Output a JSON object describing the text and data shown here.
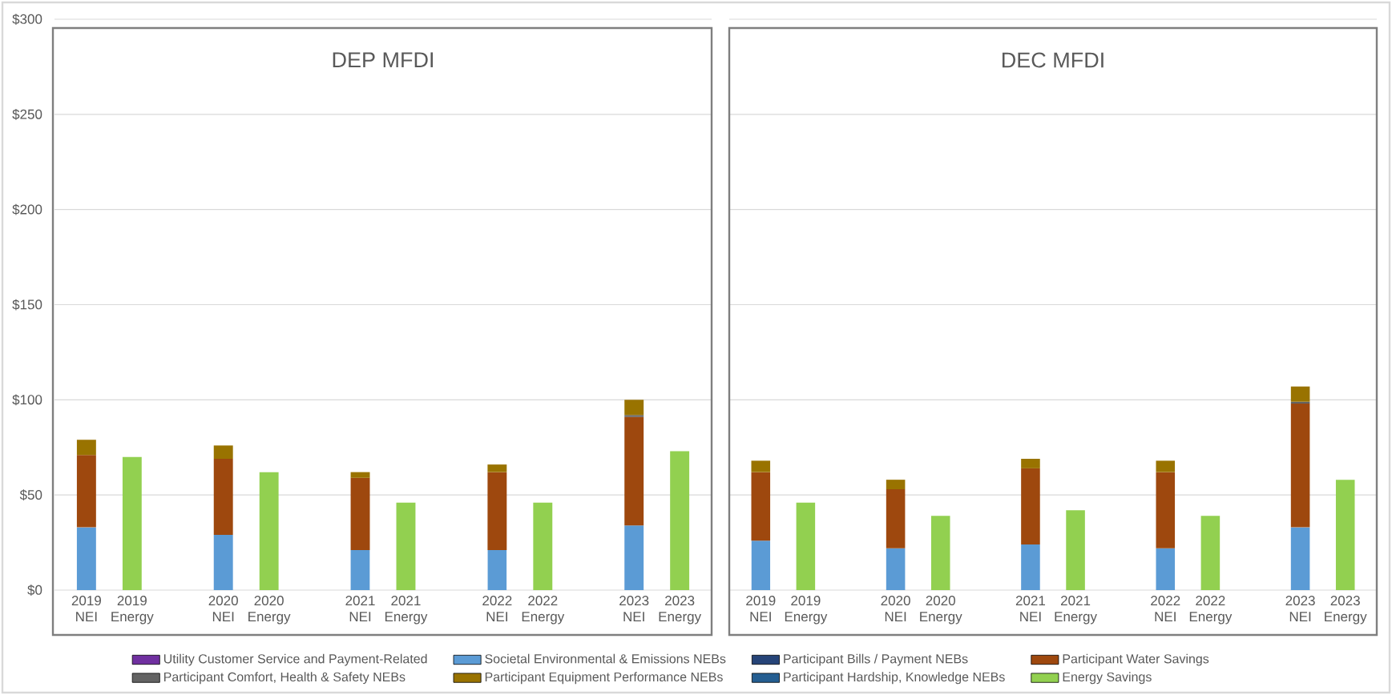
{
  "chart_data": [
    {
      "type": "bar",
      "title": "DEP MFDI",
      "stacked": true,
      "legend": "bottom",
      "grid": "y",
      "categories": [
        "2019 NEI",
        "2019 Energy",
        null,
        "2020 NEI",
        "2020 Energy",
        null,
        "2021 NEI",
        "2021 Energy",
        null,
        "2022 NEI",
        "2022 Energy",
        null,
        "2023 NEI",
        "2023 Energy"
      ],
      "ylim": [
        0,
        300
      ],
      "yticks": [
        {
          "value": 0,
          "label": "$0"
        },
        {
          "value": 50,
          "label": "$50"
        },
        {
          "value": 100,
          "label": "$100"
        },
        {
          "value": 150,
          "label": "$150"
        },
        {
          "value": 200,
          "label": "$200"
        },
        {
          "value": 250,
          "label": "$250"
        },
        {
          "value": 300,
          "label": "$300"
        }
      ],
      "series": [
        {
          "name": "Utility Customer Service and Payment-Related",
          "color": "#7030a0",
          "values": [
            0,
            null,
            null,
            0,
            null,
            null,
            0,
            null,
            null,
            0,
            null,
            null,
            0,
            null
          ]
        },
        {
          "name": "Societal Environmental & Emissions NEBs",
          "color": "#5b9bd5",
          "values": [
            33,
            null,
            null,
            29,
            null,
            null,
            21,
            null,
            null,
            21,
            null,
            null,
            34,
            null
          ]
        },
        {
          "name": "Participant Bills / Payment NEBs",
          "color": "#264478",
          "values": [
            0,
            null,
            null,
            0,
            null,
            null,
            0,
            null,
            null,
            0,
            null,
            null,
            0,
            null
          ]
        },
        {
          "name": "Participant Water Savings",
          "color": "#9e480e",
          "values": [
            38,
            null,
            null,
            40,
            null,
            null,
            38,
            null,
            null,
            41,
            null,
            null,
            57,
            null
          ]
        },
        {
          "name": "Participant Comfort, Health & Safety NEBs",
          "color": "#636363",
          "values": [
            0,
            null,
            null,
            0,
            null,
            null,
            0,
            null,
            null,
            0,
            null,
            null,
            1,
            null
          ]
        },
        {
          "name": "Participant Equipment Performance NEBs",
          "color": "#997300",
          "values": [
            8,
            null,
            null,
            7,
            null,
            null,
            3,
            null,
            null,
            4,
            null,
            null,
            8,
            null
          ]
        },
        {
          "name": "Participant Hardship, Knowledge NEBs",
          "color": "#255e91",
          "values": [
            0,
            null,
            null,
            0,
            null,
            null,
            0,
            null,
            null,
            0,
            null,
            null,
            0,
            null
          ]
        },
        {
          "name": "Energy Savings",
          "color": "#92d050",
          "values": [
            null,
            70,
            null,
            null,
            62,
            null,
            null,
            46,
            null,
            null,
            46,
            null,
            null,
            73
          ]
        }
      ]
    },
    {
      "type": "bar",
      "title": "DEC MFDI",
      "stacked": true,
      "grid": "y",
      "tick_labels": "x",
      "categories": [
        "2019 NEI",
        "2019 Energy",
        null,
        "2020 NEI",
        "2020 Energy",
        null,
        "2021 NEI",
        "2021 Energy",
        null,
        "2022 NEI",
        "2022 Energy",
        null,
        "2023 NEI",
        "2023 Energy"
      ],
      "ylim": [
        0,
        300
      ],
      "yticks": [
        {
          "value": 0,
          "label": null
        },
        {
          "value": 50,
          "label": null
        },
        {
          "value": 100,
          "label": null
        },
        {
          "value": 150,
          "label": null
        },
        {
          "value": 200,
          "label": null
        },
        {
          "value": 250,
          "label": null
        },
        {
          "value": 300,
          "label": null
        }
      ],
      "series": [
        {
          "color": "#7030a0",
          "values": [
            0,
            null,
            null,
            0,
            null,
            null,
            0,
            null,
            null,
            0,
            null,
            null,
            0,
            null
          ]
        },
        {
          "color": "#5b9bd5",
          "values": [
            26,
            null,
            null,
            22,
            null,
            null,
            24,
            null,
            null,
            22,
            null,
            null,
            33,
            null
          ]
        },
        {
          "color": "#264478",
          "values": [
            0,
            null,
            null,
            0,
            null,
            null,
            0,
            null,
            null,
            0,
            null,
            null,
            0,
            null
          ]
        },
        {
          "color": "#9e480e",
          "values": [
            36,
            null,
            null,
            31,
            null,
            null,
            40,
            null,
            null,
            40,
            null,
            null,
            65,
            null
          ]
        },
        {
          "color": "#636363",
          "values": [
            0,
            null,
            null,
            0,
            null,
            null,
            0,
            null,
            null,
            0,
            null,
            null,
            1,
            null
          ]
        },
        {
          "color": "#997300",
          "values": [
            6,
            null,
            null,
            5,
            null,
            null,
            5,
            null,
            null,
            6,
            null,
            null,
            8,
            null
          ]
        },
        {
          "color": "#255e91",
          "values": [
            0,
            null,
            null,
            0,
            null,
            null,
            0,
            null,
            null,
            0,
            null,
            null,
            0,
            null
          ]
        },
        {
          "color": "#92d050",
          "values": [
            null,
            46,
            null,
            null,
            39,
            null,
            null,
            42,
            null,
            null,
            39,
            null,
            null,
            58
          ]
        }
      ]
    }
  ]
}
